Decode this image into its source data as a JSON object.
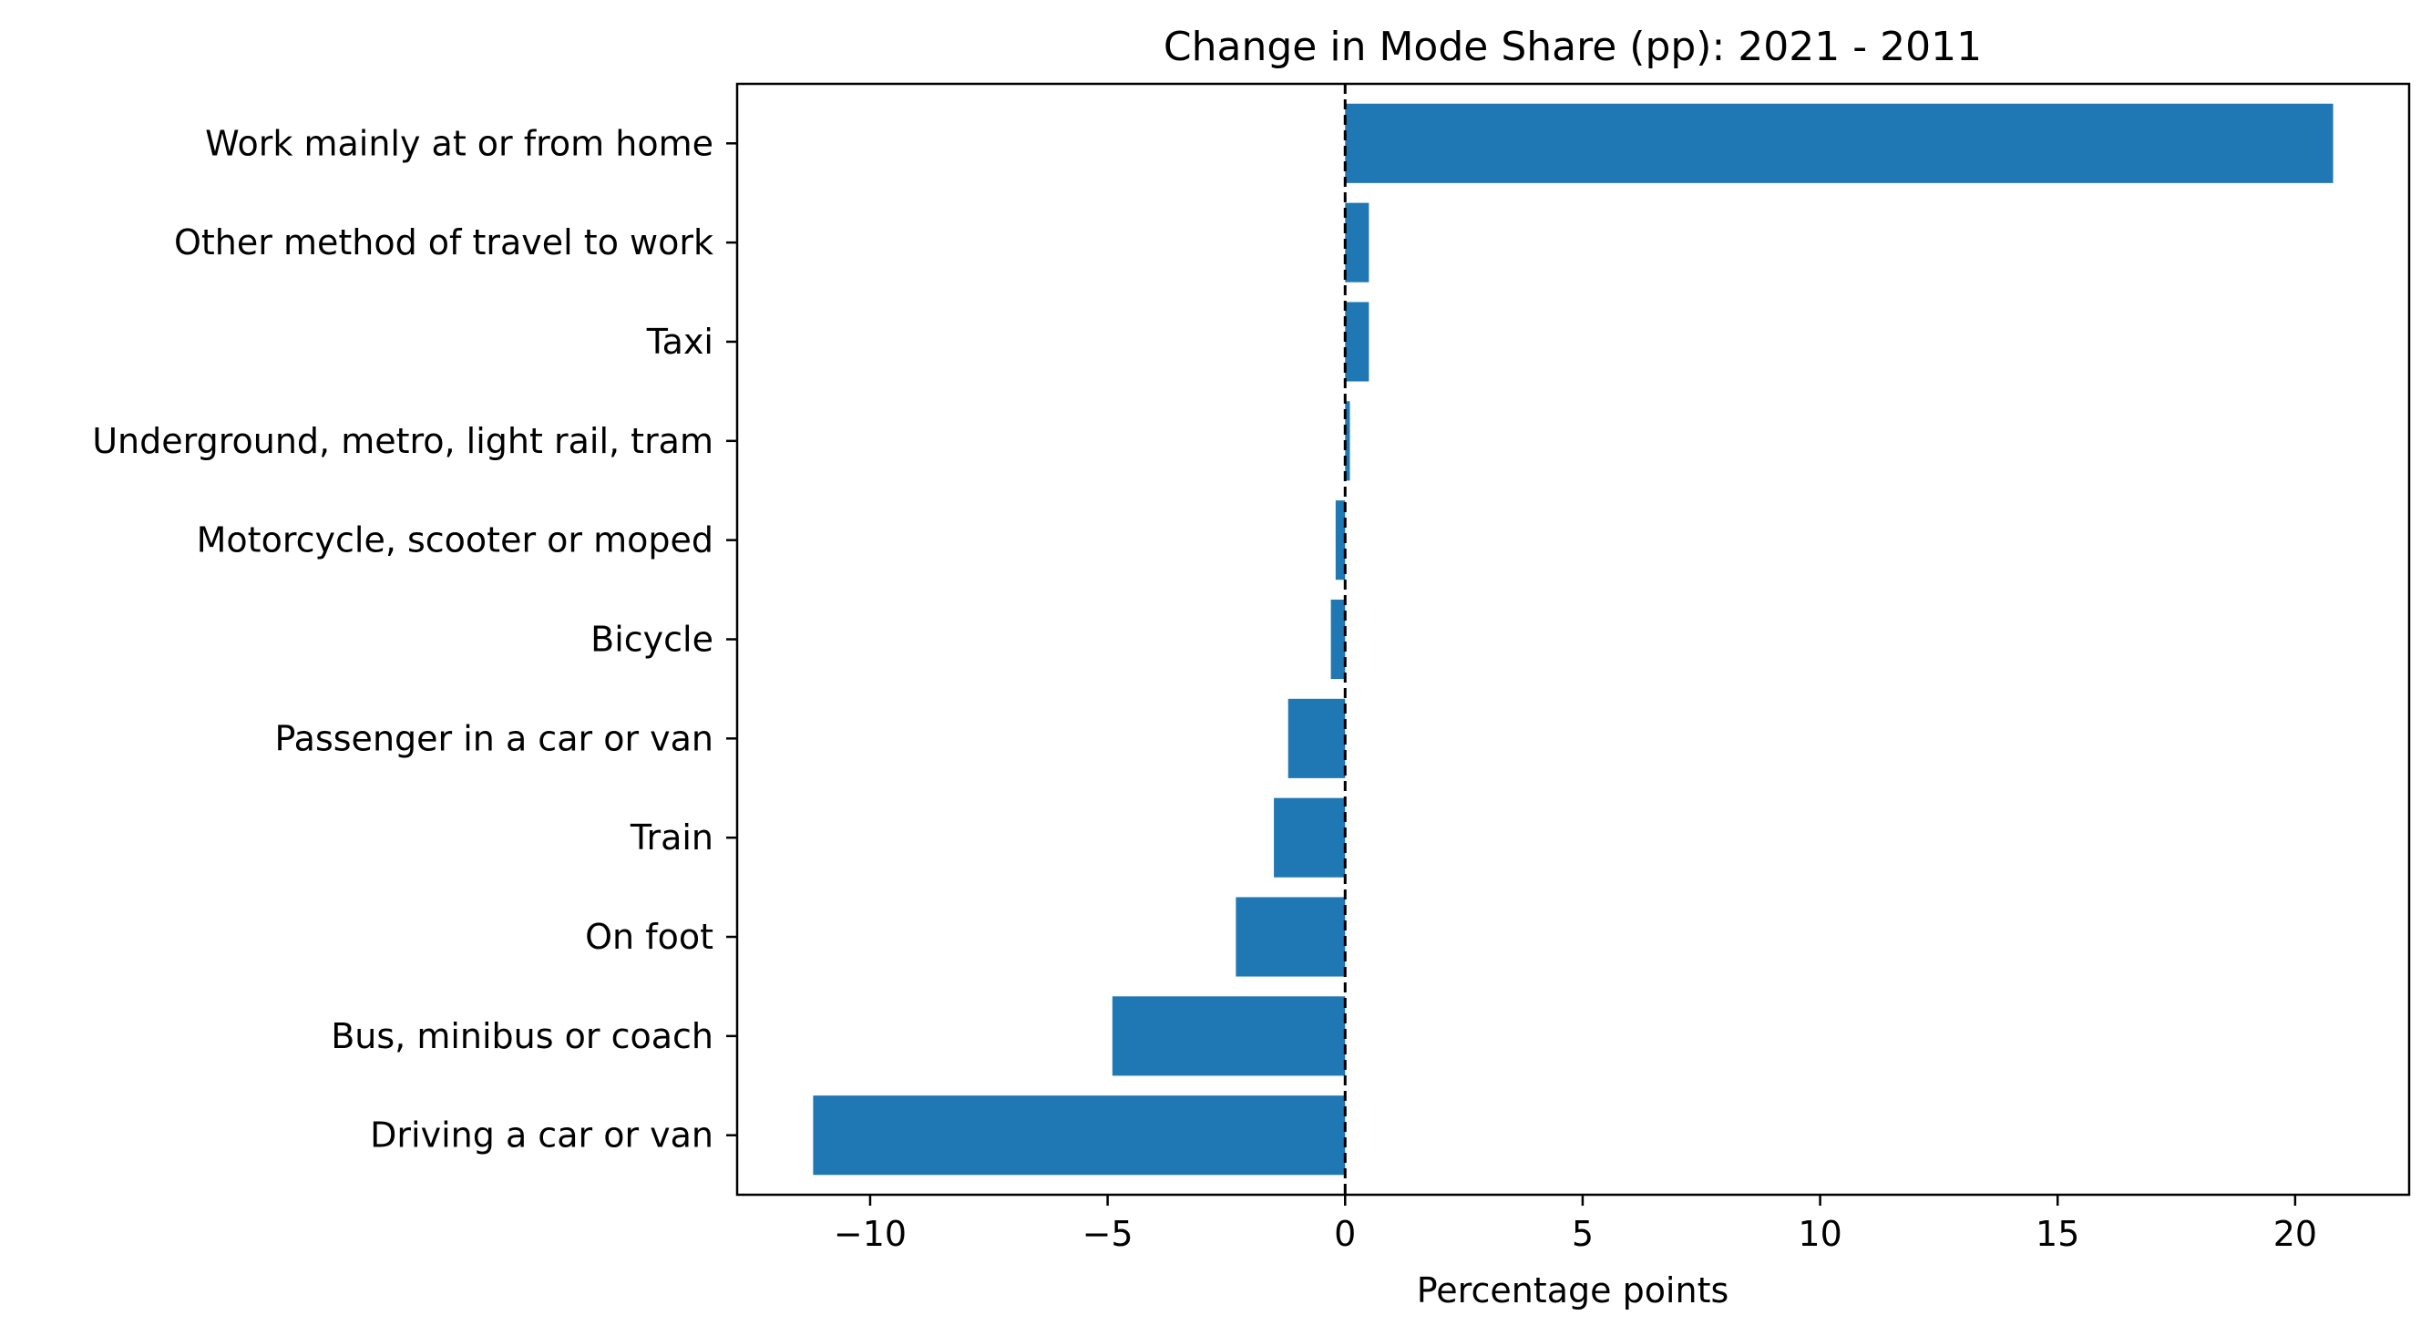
{
  "chart_data": {
    "type": "bar",
    "orientation": "horizontal",
    "title": "Change in Mode Share (pp): 2021 - 2011",
    "xlabel": "Percentage points",
    "ylabel": "",
    "categories": [
      "Driving a car or van",
      "Bus, minibus or coach",
      "On foot",
      "Train",
      "Passenger in a car or van",
      "Bicycle",
      "Motorcycle, scooter or moped",
      "Underground, metro, light rail, tram",
      "Taxi",
      "Other method of travel to work",
      "Work mainly at or from home"
    ],
    "values": [
      -11.2,
      -4.9,
      -2.3,
      -1.5,
      -1.2,
      -0.3,
      -0.2,
      0.1,
      0.5,
      0.5,
      20.8
    ],
    "xlim": [
      -12.8,
      22.4
    ],
    "xticks": [
      -10,
      -5,
      0,
      5,
      10,
      15,
      20
    ],
    "xtick_labels": [
      "−10",
      "−5",
      "0",
      "5",
      "10",
      "15",
      "20"
    ],
    "reference_line": {
      "x": 0,
      "style": "dashed",
      "color": "#000000"
    },
    "bar_color": "#1f77b4",
    "grid": false,
    "legend": "none"
  }
}
